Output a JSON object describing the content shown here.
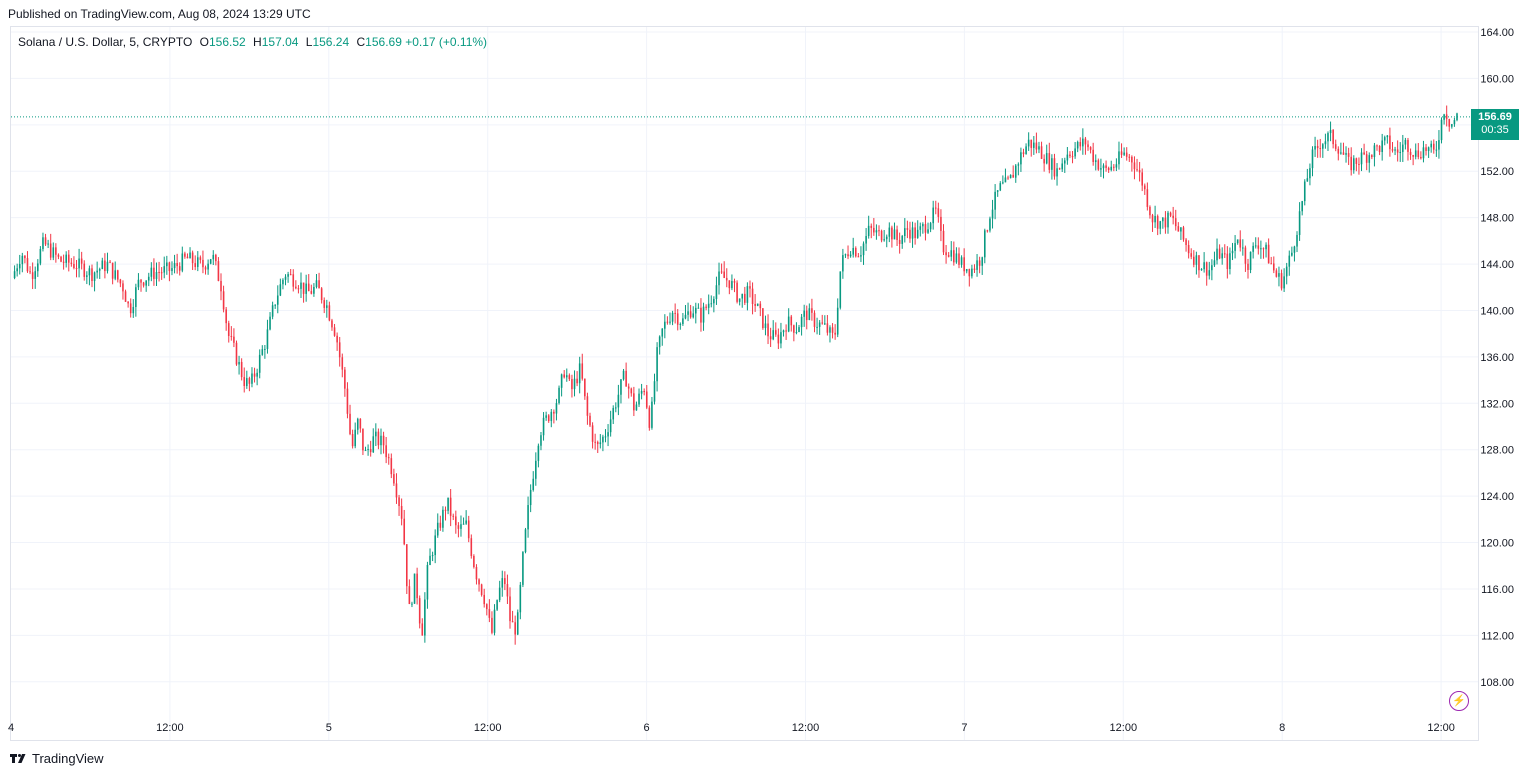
{
  "header": {
    "published": "Published on TradingView.com, Aug 08, 2024 13:29 UTC"
  },
  "legend": {
    "symbol": "Solana / U.S. Dollar, 5, CRYPTO",
    "o_label": "O",
    "o_value": "156.52",
    "h_label": "H",
    "h_value": "157.04",
    "l_label": "L",
    "l_value": "156.24",
    "c_label": "C",
    "c_value": "156.69",
    "change": "+0.17 (+0.11%)"
  },
  "price_badge": {
    "price": "156.69",
    "countdown": "00:35"
  },
  "footer": {
    "brand": "TradingView"
  },
  "colors": {
    "up": "#089981",
    "down": "#f23645",
    "grid": "#f0f3fa",
    "text": "#131722",
    "alert": "#9c27b0"
  },
  "icons": {
    "alert": "lightning-icon",
    "logo": "tradingview-logo-icon"
  },
  "chart_data": {
    "type": "candlestick",
    "title": "Solana / U.S. Dollar, 5, CRYPTO",
    "y_range": [
      106,
      164
    ],
    "y_ticks": [
      "164.00",
      "160.00",
      "156.00",
      "152.00",
      "148.00",
      "144.00",
      "140.00",
      "136.00",
      "132.00",
      "128.00",
      "124.00",
      "120.00",
      "116.00",
      "112.00",
      "108.00"
    ],
    "x_ticks": [
      "4",
      "12:00",
      "5",
      "12:00",
      "6",
      "12:00",
      "7",
      "12:00",
      "8",
      "12:00"
    ],
    "last_price": 156.69,
    "series": [
      {
        "t": 0,
        "c": 142.8
      },
      {
        "t": 0.3,
        "c": 145.0
      },
      {
        "t": 0.6,
        "c": 143.0
      },
      {
        "t": 1.0,
        "c": 145.8
      },
      {
        "t": 1.5,
        "c": 144.3
      },
      {
        "t": 2.0,
        "c": 144.0
      },
      {
        "t": 2.5,
        "c": 143.2
      },
      {
        "t": 3.0,
        "c": 144.0
      },
      {
        "t": 3.5,
        "c": 142.0
      },
      {
        "t": 3.7,
        "c": 140.0
      },
      {
        "t": 4.0,
        "c": 142.5
      },
      {
        "t": 4.5,
        "c": 143.3
      },
      {
        "t": 5.0,
        "c": 143.5
      },
      {
        "t": 5.5,
        "c": 144.5
      },
      {
        "t": 6.0,
        "c": 143.8
      },
      {
        "t": 6.3,
        "c": 144.8
      },
      {
        "t": 6.6,
        "c": 142.0
      },
      {
        "t": 6.8,
        "c": 138.0
      },
      {
        "t": 7.0,
        "c": 136.5
      },
      {
        "t": 7.3,
        "c": 134.0
      },
      {
        "t": 7.5,
        "c": 133.5
      },
      {
        "t": 7.7,
        "c": 135.0
      },
      {
        "t": 8.0,
        "c": 137.5
      },
      {
        "t": 8.3,
        "c": 141.0
      },
      {
        "t": 8.6,
        "c": 143.2
      },
      {
        "t": 9.0,
        "c": 142.5
      },
      {
        "t": 9.3,
        "c": 141.5
      },
      {
        "t": 9.6,
        "c": 142.0
      },
      {
        "t": 9.9,
        "c": 140.5
      },
      {
        "t": 10.2,
        "c": 138.0
      },
      {
        "t": 10.5,
        "c": 133.0
      },
      {
        "t": 10.7,
        "c": 128.0
      },
      {
        "t": 10.9,
        "c": 130.5
      },
      {
        "t": 11.1,
        "c": 127.5
      },
      {
        "t": 11.4,
        "c": 129.0
      },
      {
        "t": 11.7,
        "c": 128.5
      },
      {
        "t": 12.0,
        "c": 126.0
      },
      {
        "t": 12.3,
        "c": 122.0
      },
      {
        "t": 12.5,
        "c": 114.0
      },
      {
        "t": 12.7,
        "c": 117.0
      },
      {
        "t": 12.9,
        "c": 112.0
      },
      {
        "t": 13.1,
        "c": 118.0
      },
      {
        "t": 13.4,
        "c": 121.0
      },
      {
        "t": 13.7,
        "c": 123.5
      },
      {
        "t": 14.0,
        "c": 121.0
      },
      {
        "t": 14.3,
        "c": 121.5
      },
      {
        "t": 14.6,
        "c": 117.5
      },
      {
        "t": 14.9,
        "c": 115.0
      },
      {
        "t": 15.1,
        "c": 112.0
      },
      {
        "t": 15.3,
        "c": 115.5
      },
      {
        "t": 15.5,
        "c": 117.0
      },
      {
        "t": 15.7,
        "c": 113.0
      },
      {
        "t": 15.9,
        "c": 112.5
      },
      {
        "t": 16.1,
        "c": 119.0
      },
      {
        "t": 16.3,
        "c": 124.0
      },
      {
        "t": 16.6,
        "c": 129.5
      },
      {
        "t": 16.9,
        "c": 131.0
      },
      {
        "t": 17.2,
        "c": 132.5
      },
      {
        "t": 17.4,
        "c": 135.0
      },
      {
        "t": 17.6,
        "c": 133.0
      },
      {
        "t": 17.9,
        "c": 135.0
      },
      {
        "t": 18.1,
        "c": 131.0
      },
      {
        "t": 18.4,
        "c": 128.0
      },
      {
        "t": 18.7,
        "c": 129.5
      },
      {
        "t": 19.0,
        "c": 132.0
      },
      {
        "t": 19.3,
        "c": 134.5
      },
      {
        "t": 19.6,
        "c": 131.5
      },
      {
        "t": 19.9,
        "c": 133.5
      },
      {
        "t": 20.1,
        "c": 130.0
      },
      {
        "t": 20.3,
        "c": 136.0
      },
      {
        "t": 20.5,
        "c": 138.5
      },
      {
        "t": 20.8,
        "c": 140.0
      },
      {
        "t": 21.1,
        "c": 139.0
      },
      {
        "t": 21.4,
        "c": 140.2
      },
      {
        "t": 21.7,
        "c": 139.5
      },
      {
        "t": 22.0,
        "c": 141.0
      },
      {
        "t": 22.3,
        "c": 143.0
      },
      {
        "t": 22.6,
        "c": 142.5
      },
      {
        "t": 22.9,
        "c": 141.0
      },
      {
        "t": 23.2,
        "c": 141.5
      },
      {
        "t": 23.5,
        "c": 140.0
      },
      {
        "t": 23.8,
        "c": 138.0
      },
      {
        "t": 24.1,
        "c": 137.5
      },
      {
        "t": 24.4,
        "c": 139.0
      },
      {
        "t": 24.7,
        "c": 138.5
      },
      {
        "t": 25.0,
        "c": 139.8
      },
      {
        "t": 25.3,
        "c": 139.0
      },
      {
        "t": 25.6,
        "c": 138.5
      },
      {
        "t": 25.9,
        "c": 137.5
      },
      {
        "t": 26.1,
        "c": 144.0
      },
      {
        "t": 26.4,
        "c": 145.5
      },
      {
        "t": 26.7,
        "c": 145.0
      },
      {
        "t": 27.0,
        "c": 147.0
      },
      {
        "t": 27.3,
        "c": 146.5
      },
      {
        "t": 27.6,
        "c": 147.0
      },
      {
        "t": 27.9,
        "c": 146.0
      },
      {
        "t": 28.2,
        "c": 147.0
      },
      {
        "t": 28.5,
        "c": 146.5
      },
      {
        "t": 28.8,
        "c": 147.5
      },
      {
        "t": 29.1,
        "c": 148.5
      },
      {
        "t": 29.3,
        "c": 145.5
      },
      {
        "t": 29.6,
        "c": 145.0
      },
      {
        "t": 29.9,
        "c": 144.0
      },
      {
        "t": 30.2,
        "c": 143.5
      },
      {
        "t": 30.5,
        "c": 144.5
      },
      {
        "t": 30.8,
        "c": 148.5
      },
      {
        "t": 31.1,
        "c": 150.5
      },
      {
        "t": 31.4,
        "c": 151.0
      },
      {
        "t": 31.7,
        "c": 153.0
      },
      {
        "t": 32.0,
        "c": 154.5
      },
      {
        "t": 32.3,
        "c": 154.0
      },
      {
        "t": 32.6,
        "c": 153.0
      },
      {
        "t": 32.9,
        "c": 152.0
      },
      {
        "t": 33.2,
        "c": 153.5
      },
      {
        "t": 33.5,
        "c": 154.0
      },
      {
        "t": 33.8,
        "c": 154.5
      },
      {
        "t": 34.1,
        "c": 153.0
      },
      {
        "t": 34.4,
        "c": 152.0
      },
      {
        "t": 34.7,
        "c": 152.5
      },
      {
        "t": 35.0,
        "c": 153.5
      },
      {
        "t": 35.3,
        "c": 153.0
      },
      {
        "t": 35.6,
        "c": 151.0
      },
      {
        "t": 35.9,
        "c": 148.0
      },
      {
        "t": 36.2,
        "c": 147.5
      },
      {
        "t": 36.5,
        "c": 148.0
      },
      {
        "t": 36.8,
        "c": 146.5
      },
      {
        "t": 37.1,
        "c": 145.0
      },
      {
        "t": 37.4,
        "c": 144.0
      },
      {
        "t": 37.7,
        "c": 143.5
      },
      {
        "t": 38.0,
        "c": 145.0
      },
      {
        "t": 38.3,
        "c": 144.0
      },
      {
        "t": 38.6,
        "c": 146.5
      },
      {
        "t": 38.9,
        "c": 144.0
      },
      {
        "t": 39.2,
        "c": 146.0
      },
      {
        "t": 39.5,
        "c": 145.0
      },
      {
        "t": 39.8,
        "c": 143.0
      },
      {
        "t": 40.0,
        "c": 142.5
      },
      {
        "t": 40.3,
        "c": 145.0
      },
      {
        "t": 40.6,
        "c": 149.0
      },
      {
        "t": 40.9,
        "c": 153.0
      },
      {
        "t": 41.2,
        "c": 154.5
      },
      {
        "t": 41.5,
        "c": 155.0
      },
      {
        "t": 41.8,
        "c": 154.0
      },
      {
        "t": 42.1,
        "c": 152.5
      },
      {
        "t": 42.4,
        "c": 153.0
      },
      {
        "t": 42.7,
        "c": 153.5
      },
      {
        "t": 43.0,
        "c": 154.0
      },
      {
        "t": 43.3,
        "c": 154.5
      },
      {
        "t": 43.6,
        "c": 153.5
      },
      {
        "t": 43.9,
        "c": 154.5
      },
      {
        "t": 44.2,
        "c": 153.5
      },
      {
        "t": 44.5,
        "c": 154.0
      },
      {
        "t": 44.8,
        "c": 153.5
      },
      {
        "t": 45.1,
        "c": 157.5
      },
      {
        "t": 45.3,
        "c": 156.0
      },
      {
        "t": 45.5,
        "c": 156.69
      }
    ]
  }
}
